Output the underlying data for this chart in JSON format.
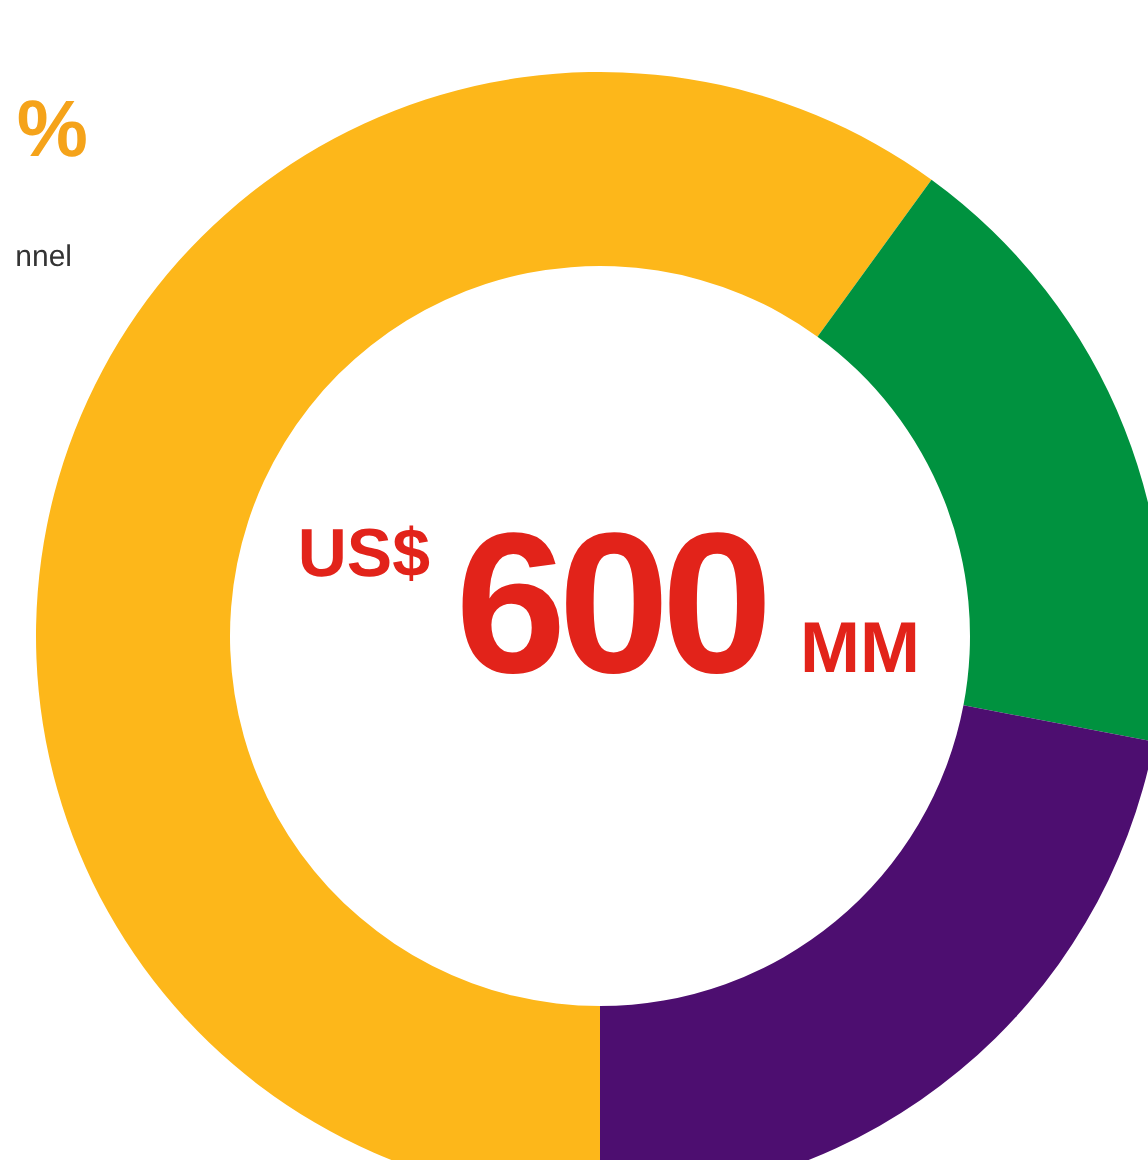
{
  "chart_data": {
    "type": "donut",
    "categories": [
      null,
      null,
      null
    ],
    "values": [
      60,
      18,
      22
    ],
    "colors": [
      "#fdb71a",
      "#00923f",
      "#4d0e70"
    ],
    "annotations": [
      "%",
      "nnel",
      "US$",
      "600",
      "MM"
    ]
  }
}
